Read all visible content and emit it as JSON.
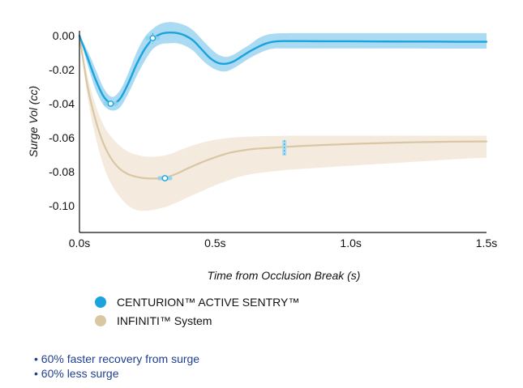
{
  "chart_data": {
    "type": "line",
    "title": "",
    "xlabel": "Time from Occlusion Break (s)",
    "ylabel": "Surge Vol (cc)",
    "xlim": [
      0,
      1.5
    ],
    "ylim": [
      -0.115,
      0.0
    ],
    "x_ticks": [
      0,
      0.5,
      1.0,
      1.5
    ],
    "x_tick_labels": [
      "0.0s",
      "0.5s",
      "1.0s",
      "1.5s"
    ],
    "y_ticks": [
      0.0,
      -0.02,
      -0.04,
      -0.06,
      -0.08,
      -0.1
    ],
    "y_tick_labels": [
      "0.00",
      "-0.02",
      "-0.04",
      "-0.06",
      "-0.08",
      "-0.10"
    ],
    "grid": false,
    "legend_position": "bottom-left",
    "series": [
      {
        "name": "CENTURION™ ACTIVE SENTRY™",
        "color": "#1aa3dc",
        "band_color": "#aadbf2",
        "x": [
          0,
          0.03,
          0.06,
          0.09,
          0.12,
          0.15,
          0.18,
          0.21,
          0.24,
          0.27,
          0.3,
          0.33,
          0.36,
          0.39,
          0.42,
          0.45,
          0.48,
          0.51,
          0.54,
          0.57,
          0.6,
          0.63,
          0.66,
          0.69,
          0.72,
          0.75,
          0.8,
          0.9,
          1.0,
          1.1,
          1.2,
          1.3,
          1.4,
          1.5
        ],
        "y": [
          0,
          -0.013,
          -0.026,
          -0.036,
          -0.04,
          -0.037,
          -0.028,
          -0.017,
          -0.008,
          -0.002,
          0.001,
          0.0018,
          0.0015,
          0.0,
          -0.003,
          -0.008,
          -0.013,
          -0.016,
          -0.0165,
          -0.015,
          -0.012,
          -0.009,
          -0.0065,
          -0.0045,
          -0.0035,
          -0.0032,
          -0.0032,
          -0.0033,
          -0.0033,
          -0.0034,
          -0.0035,
          -0.0035,
          -0.0036,
          -0.0036
        ],
        "upper": [
          0,
          -0.009,
          -0.02,
          -0.031,
          -0.036,
          -0.032,
          -0.022,
          -0.01,
          -0.001,
          0.004,
          0.007,
          0.008,
          0.0075,
          0.006,
          0.003,
          -0.002,
          -0.007,
          -0.011,
          -0.0125,
          -0.011,
          -0.008,
          -0.005,
          -0.0015,
          0.0005,
          0.0012,
          0.0014,
          0.0015,
          0.0015,
          0.0015,
          0.0015,
          0.0015,
          0.0015,
          0.0015,
          0.0015
        ],
        "lower": [
          0,
          -0.017,
          -0.032,
          -0.041,
          -0.044,
          -0.042,
          -0.034,
          -0.024,
          -0.015,
          -0.008,
          -0.005,
          -0.0045,
          -0.0045,
          -0.006,
          -0.009,
          -0.014,
          -0.018,
          -0.0205,
          -0.021,
          -0.019,
          -0.016,
          -0.013,
          -0.0105,
          -0.0085,
          -0.0075,
          -0.0075,
          -0.0075,
          -0.0075,
          -0.0075,
          -0.0075,
          -0.0075,
          -0.0076,
          -0.0076,
          -0.0076
        ],
        "markers": [
          {
            "x": 0.115,
            "y": -0.04
          },
          {
            "x": 0.27,
            "y": -0.0015
          }
        ]
      },
      {
        "name": "INFINITI™ System",
        "color": "#d9c6a3",
        "band_color": "#f4ebde",
        "x": [
          0,
          0.03,
          0.06,
          0.09,
          0.12,
          0.15,
          0.18,
          0.21,
          0.24,
          0.27,
          0.3,
          0.33,
          0.36,
          0.4,
          0.45,
          0.5,
          0.55,
          0.6,
          0.65,
          0.7,
          0.75,
          0.8,
          0.9,
          1.0,
          1.1,
          1.2,
          1.3,
          1.4,
          1.5
        ],
        "y": [
          0,
          -0.03,
          -0.05,
          -0.064,
          -0.073,
          -0.0785,
          -0.0815,
          -0.083,
          -0.0838,
          -0.084,
          -0.0838,
          -0.0828,
          -0.081,
          -0.078,
          -0.0745,
          -0.0715,
          -0.069,
          -0.0675,
          -0.0665,
          -0.066,
          -0.0655,
          -0.065,
          -0.0643,
          -0.0637,
          -0.0632,
          -0.0628,
          -0.0625,
          -0.0623,
          -0.0622
        ],
        "upper": [
          0,
          -0.024,
          -0.041,
          -0.053,
          -0.06,
          -0.065,
          -0.0682,
          -0.07,
          -0.071,
          -0.0712,
          -0.0708,
          -0.0698,
          -0.068,
          -0.0655,
          -0.063,
          -0.0612,
          -0.0601,
          -0.0595,
          -0.0592,
          -0.059,
          -0.0589,
          -0.0588,
          -0.0588,
          -0.0588,
          -0.0588,
          -0.0588,
          -0.0588,
          -0.0588,
          -0.0588
        ],
        "lower": [
          0,
          -0.036,
          -0.06,
          -0.077,
          -0.088,
          -0.095,
          -0.1,
          -0.1025,
          -0.103,
          -0.1025,
          -0.1015,
          -0.1,
          -0.098,
          -0.095,
          -0.0915,
          -0.088,
          -0.085,
          -0.0825,
          -0.081,
          -0.08,
          -0.0792,
          -0.0786,
          -0.0775,
          -0.0765,
          -0.0755,
          -0.0745,
          -0.0735,
          -0.0725,
          -0.0718
        ],
        "markers": [
          {
            "x": 0.315,
            "y": -0.0838
          }
        ]
      }
    ],
    "error_markers": [
      {
        "x": 0.27,
        "y": -0.0015,
        "low": -0.0045,
        "high": 0.0015,
        "color": "#1aa3dc"
      },
      {
        "x": 0.755,
        "y": -0.0655,
        "low": -0.0705,
        "high": -0.0615,
        "color": "#1aa3dc"
      }
    ]
  },
  "bullets": [
    "• 60% faster recovery from surge",
    "• 60% less surge"
  ]
}
